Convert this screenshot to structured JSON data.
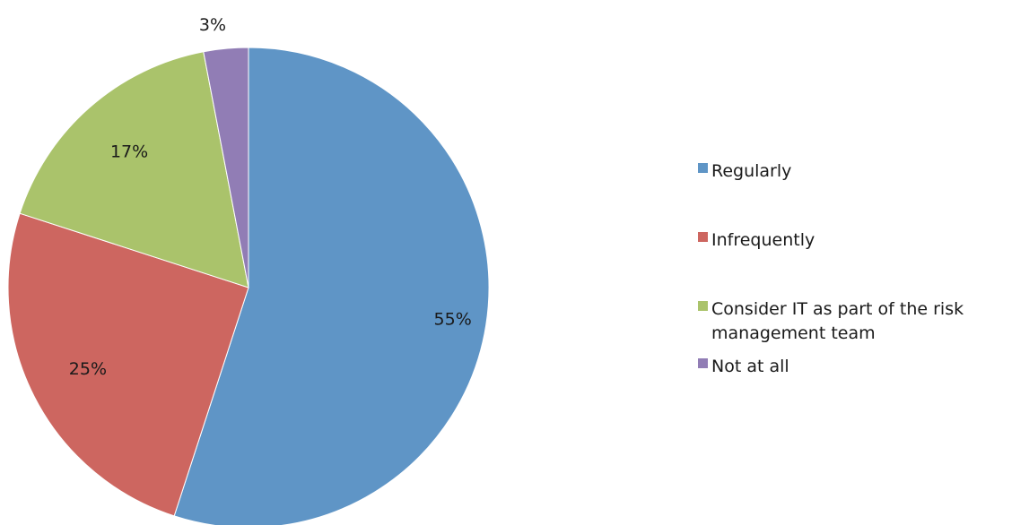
{
  "chart_data": {
    "type": "pie",
    "title": "",
    "categories": [
      "Regularly",
      "Infrequently",
      "Consider IT as part of the risk management team",
      "Not at all"
    ],
    "values": [
      55,
      25,
      17,
      3
    ],
    "labels": [
      "55%",
      "25%",
      "17%",
      "3%"
    ],
    "colors": [
      "#5f95c6",
      "#cd6660",
      "#aac36b",
      "#917db5"
    ],
    "start_angle": "12 o'clock",
    "direction": "clockwise",
    "legend_position": "right"
  }
}
